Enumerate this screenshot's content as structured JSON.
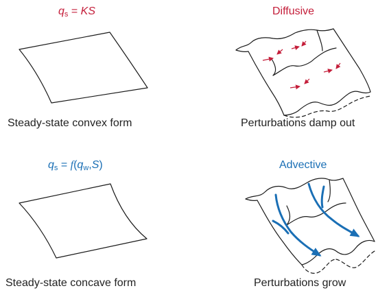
{
  "panels": {
    "top_left": {
      "formula": {
        "q": "q",
        "q_sub": "s",
        "equals": " = ",
        "rhs": "KS"
      },
      "caption": "Steady-state convex form"
    },
    "top_right": {
      "title": "Diffusive",
      "caption": "Perturbations damp out"
    },
    "bottom_left": {
      "formula": {
        "q": "q",
        "q_sub": "s",
        "equals": " = ",
        "f": "f",
        "open": "(",
        "qw": "q",
        "qw_sub": "w",
        "comma": ",",
        "S": "S",
        "close": ")"
      },
      "caption": "Steady-state concave form"
    },
    "bottom_right": {
      "title": "Advective",
      "caption": "Perturbations grow"
    }
  },
  "colors": {
    "diffusive": "#c41e3a",
    "advective": "#1a6fb5",
    "line": "#1a1a1a"
  }
}
